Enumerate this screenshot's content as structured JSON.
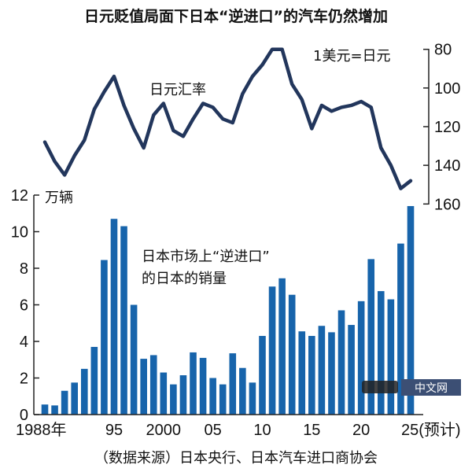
{
  "chart_data": {
    "type": "bar+line",
    "title": "日元贬值局面下日本“逆进口”的汽车仍然增加",
    "source": "（数据来源）日本央行、日本汽车进口商协会",
    "x": [
      1988,
      1989,
      1990,
      1991,
      1992,
      1993,
      1994,
      1995,
      1996,
      1997,
      1998,
      1999,
      2000,
      2001,
      2002,
      2003,
      2004,
      2005,
      2006,
      2007,
      2008,
      2009,
      2010,
      2011,
      2012,
      2013,
      2014,
      2015,
      2016,
      2017,
      2018,
      2019,
      2020,
      2021,
      2022,
      2023,
      2024,
      2025
    ],
    "x_tick_labels": [
      {
        "year": 1988,
        "label": "1988年"
      },
      {
        "year": 1995,
        "label": "95"
      },
      {
        "year": 2000,
        "label": "2000"
      },
      {
        "year": 2005,
        "label": "05"
      },
      {
        "year": 2010,
        "label": "10"
      },
      {
        "year": 2015,
        "label": "15"
      },
      {
        "year": 2020,
        "label": "20"
      },
      {
        "year": 2025,
        "label": "25(预计)"
      }
    ],
    "series": [
      {
        "name": "日本市场上“逆进口”的日本的销量",
        "name_lines": [
          "日本市场上“逆进口”",
          "的日本的销量"
        ],
        "type": "bar",
        "axis": "left",
        "color": "#1764ab",
        "values": [
          0.55,
          0.5,
          1.3,
          1.75,
          2.5,
          3.7,
          8.45,
          10.7,
          10.3,
          6.0,
          3.05,
          3.25,
          2.3,
          1.65,
          2.15,
          3.4,
          3.1,
          2.0,
          1.65,
          3.35,
          2.55,
          1.75,
          4.3,
          7.0,
          7.45,
          6.55,
          4.55,
          4.3,
          4.85,
          4.5,
          5.7,
          4.9,
          6.2,
          8.5,
          6.75,
          6.3,
          9.35,
          11.4
        ]
      },
      {
        "name": "日元汇率",
        "type": "line",
        "axis": "right",
        "color": "#22365c",
        "values": [
          128,
          138,
          145,
          135,
          127,
          111,
          102,
          94,
          109,
          121,
          131,
          114,
          108,
          122,
          125,
          116,
          108,
          110,
          116,
          118,
          103,
          94,
          88,
          80,
          80,
          98,
          106,
          121,
          109,
          112,
          110,
          109,
          107,
          110,
          131,
          140,
          152,
          148
        ]
      }
    ],
    "left_axis": {
      "unit": "万辆",
      "ylim": [
        0,
        12
      ],
      "ticks": [
        0,
        2,
        4,
        6,
        8,
        10,
        12
      ]
    },
    "right_axis": {
      "unit": "1美元=日元",
      "ylim": [
        80,
        160
      ],
      "inverted": true,
      "ticks": [
        80,
        100,
        120,
        140,
        160
      ]
    },
    "grid": false,
    "legend": "inline labels"
  },
  "watermark": {
    "logo_text": "日経",
    "badge": "中文网"
  }
}
